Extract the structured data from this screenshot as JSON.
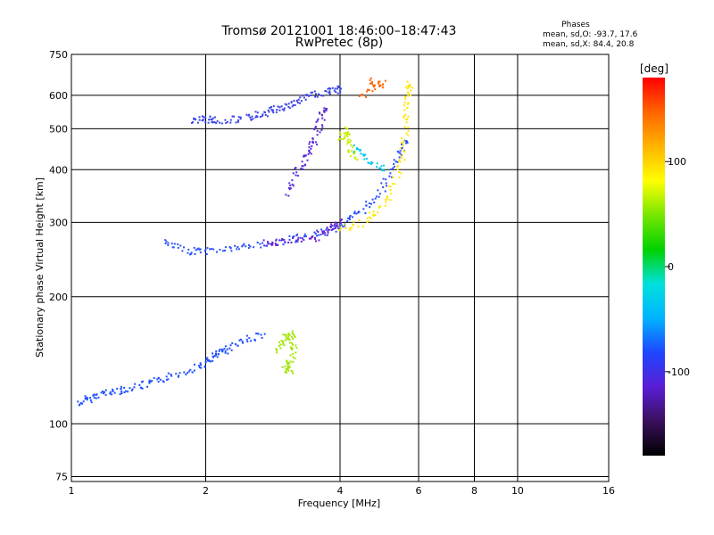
{
  "chart_data": {
    "type": "scatter",
    "title": "Tromsø 20121001 18:46:00–18:47:43",
    "subtitle": "RwPretec (8p)",
    "stats": {
      "header": "Phases",
      "o_line": "mean, sd,O: -93.7, 17.6",
      "x_line": "mean, sd,X:  84.4, 20.8"
    },
    "xlabel": "Frequency [MHz]",
    "ylabel": "Stationary phase Virtual Height [km]",
    "x_scale": "log",
    "y_scale": "log",
    "xlim": [
      1,
      16
    ],
    "ylim": [
      73,
      750
    ],
    "x_ticks": [
      1,
      2,
      4,
      6,
      8,
      10,
      16
    ],
    "y_ticks": [
      75,
      100,
      200,
      300,
      400,
      500,
      600,
      750
    ],
    "grid": true,
    "colorbar": {
      "label": "[deg]",
      "range": [
        -180,
        180
      ],
      "ticks": [
        100,
        0,
        -100
      ],
      "colormap": [
        "#000000",
        "#3a0f5c",
        "#5a1ed6",
        "#1e46ff",
        "#00b4ff",
        "#00e1dc",
        "#00d200",
        "#78e600",
        "#ffff00",
        "#ffb400",
        "#ff6400",
        "#ff0000"
      ]
    },
    "series": [
      {
        "color": "#1e4fff",
        "points": [
          [
            1.04,
            112
          ],
          [
            1.1,
            116
          ],
          [
            1.2,
            119
          ],
          [
            1.3,
            121
          ],
          [
            1.45,
            124
          ],
          [
            1.6,
            128
          ],
          [
            1.8,
            134
          ],
          [
            2.0,
            140
          ],
          [
            2.1,
            146
          ],
          [
            2.2,
            150
          ],
          [
            2.4,
            158
          ],
          [
            2.7,
            164
          ]
        ]
      },
      {
        "color": "#2850ff",
        "points": [
          [
            1.6,
            270
          ],
          [
            1.8,
            258
          ],
          [
            2.0,
            258
          ],
          [
            2.3,
            262
          ],
          [
            2.6,
            266
          ],
          [
            3.0,
            272
          ],
          [
            3.4,
            280
          ],
          [
            3.8,
            290
          ],
          [
            4.2,
            305
          ],
          [
            4.6,
            330
          ],
          [
            5.0,
            370
          ],
          [
            5.4,
            430
          ],
          [
            5.6,
            470
          ]
        ]
      },
      {
        "color": "#6a1fd0",
        "points": [
          [
            2.7,
            270
          ],
          [
            3.0,
            272
          ],
          [
            3.5,
            276
          ],
          [
            3.8,
            290
          ],
          [
            4.0,
            305
          ]
        ]
      },
      {
        "color": "#3a44e8",
        "points": [
          [
            1.85,
            525
          ],
          [
            2.0,
            530
          ],
          [
            2.1,
            525
          ],
          [
            2.4,
            530
          ],
          [
            2.6,
            540
          ],
          [
            2.8,
            555
          ],
          [
            3.0,
            565
          ],
          [
            3.2,
            585
          ],
          [
            3.5,
            605
          ],
          [
            3.8,
            615
          ],
          [
            4.0,
            625
          ]
        ]
      },
      {
        "color": "#5a2ad8",
        "points": [
          [
            3.0,
            350
          ],
          [
            3.2,
            400
          ],
          [
            3.4,
            440
          ],
          [
            3.5,
            470
          ],
          [
            3.6,
            530
          ],
          [
            3.7,
            560
          ]
        ]
      },
      {
        "color": "#ffe600",
        "points": [
          [
            4.0,
            290
          ],
          [
            4.5,
            300
          ],
          [
            5.0,
            330
          ],
          [
            5.3,
            380
          ],
          [
            5.5,
            440
          ],
          [
            5.6,
            520
          ],
          [
            5.65,
            600
          ],
          [
            5.7,
            640
          ]
        ]
      },
      {
        "color": "#c8f000",
        "points": [
          [
            4.0,
            470
          ],
          [
            4.1,
            500
          ],
          [
            4.2,
            450
          ],
          [
            4.3,
            430
          ]
        ]
      },
      {
        "color": "#a0e600",
        "points": [
          [
            2.9,
            150
          ],
          [
            3.0,
            160
          ],
          [
            3.1,
            165
          ],
          [
            3.15,
            148
          ],
          [
            3.0,
            136
          ],
          [
            3.1,
            134
          ]
        ]
      },
      {
        "color": "#ff6400",
        "points": [
          [
            4.6,
            650
          ],
          [
            5.0,
            640
          ],
          [
            4.4,
            600
          ]
        ]
      },
      {
        "color": "#00c8f0",
        "points": [
          [
            4.3,
            455
          ],
          [
            4.6,
            425
          ],
          [
            5.0,
            400
          ]
        ]
      }
    ]
  }
}
